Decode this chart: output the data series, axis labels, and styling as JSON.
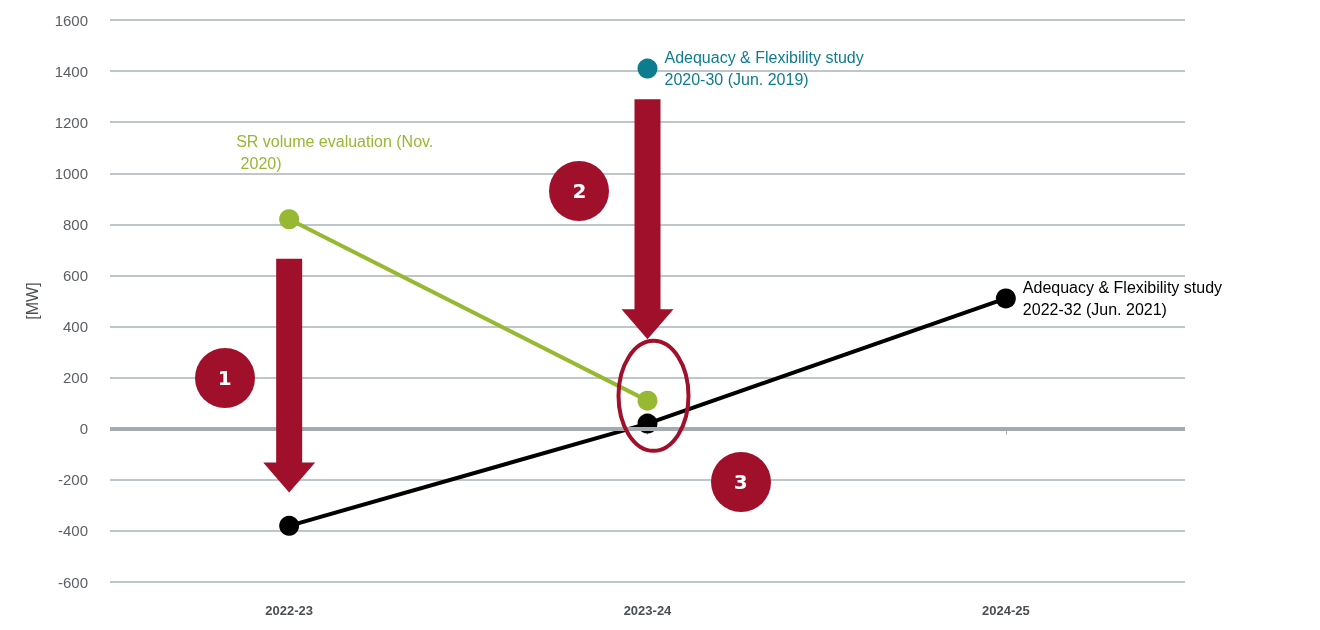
{
  "chart_data": {
    "type": "line",
    "ylabel": "[MW]",
    "categories": [
      "2022-23",
      "2023-24",
      "2024-25"
    ],
    "series": [
      {
        "name": "SR volume evaluation (Nov. 2020)",
        "color": "#97b832",
        "values": [
          820,
          110,
          null
        ]
      },
      {
        "name": "Adequacy & Flexibility study 2020-30 (Jun. 2019)",
        "color": "#0e7c8f",
        "values": [
          null,
          1410,
          null
        ]
      },
      {
        "name": "Adequacy & Flexibility study 2022-32 (Jun. 2021)",
        "color": "#000000",
        "values": [
          -380,
          20,
          510
        ]
      }
    ],
    "ylim": [
      -600,
      1600
    ],
    "yticks": [
      -600,
      -400,
      -200,
      0,
      200,
      400,
      600,
      800,
      1000,
      1200,
      1400,
      1600
    ],
    "grid": "y",
    "legend": false,
    "marker": "circle",
    "line_style": "solid",
    "ref_lines": [
      {
        "axis": "y",
        "value": 0,
        "color": "#a3abb1"
      }
    ],
    "annotations": [
      "1",
      "2",
      "3"
    ]
  }
}
